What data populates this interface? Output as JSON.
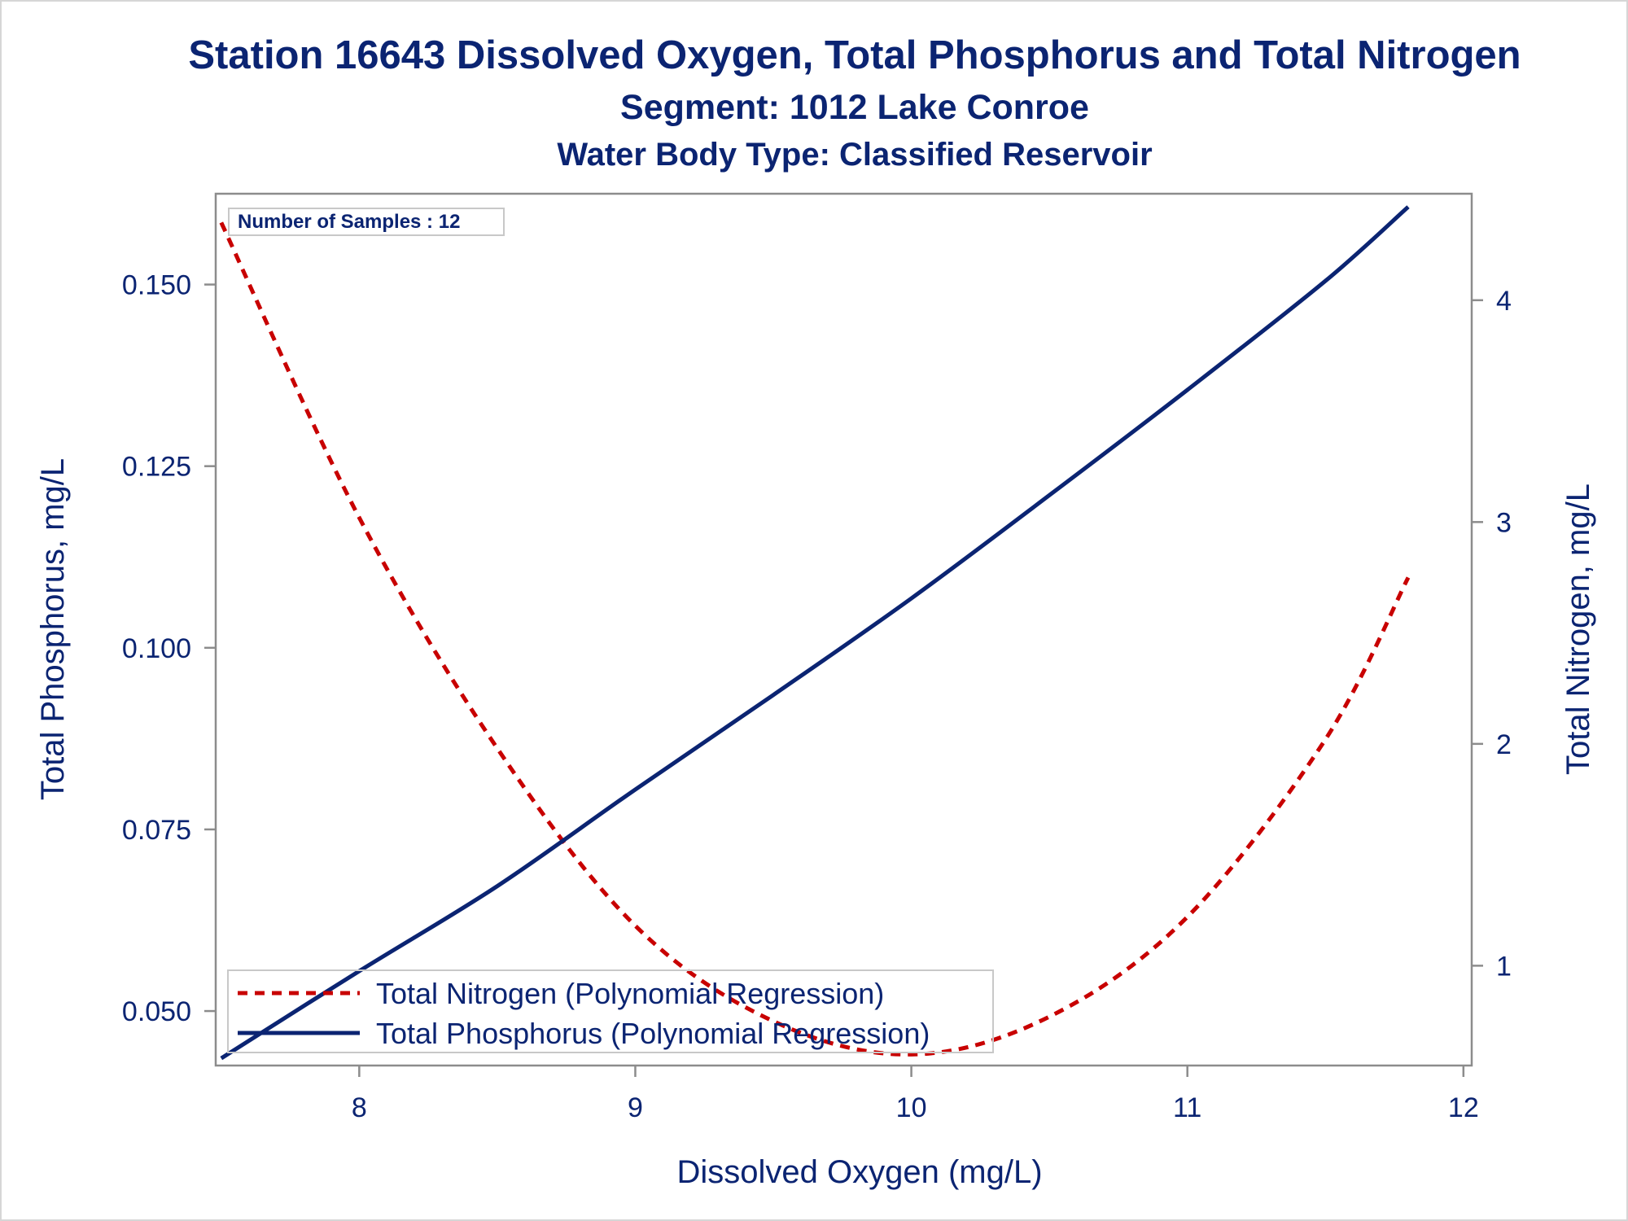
{
  "titles": {
    "line1": "Station 16643  Dissolved Oxygen, Total Phosphorus and Total Nitrogen",
    "line2": "Segment: 1012  Lake Conroe",
    "line3": "Water Body Type: Classified Reservoir"
  },
  "inset_label": "Number of Samples : 12",
  "colors": {
    "text": "#0b2472",
    "phosphorus": "#0b2472",
    "nitrogen": "#c80000",
    "axis": "#8c8c8c"
  },
  "chart_data": {
    "type": "line",
    "xlabel": "Dissolved Oxygen (mg/L)",
    "ylabel": "Total Phosphorus, mg/L",
    "y2label": "Total Nitrogen, mg/L",
    "xlim": [
      7.48,
      12.03
    ],
    "ylim": [
      0.0425,
      0.1625
    ],
    "y2lim": [
      0.55,
      4.48
    ],
    "xticks": [
      "8",
      "9",
      "10",
      "11",
      "12"
    ],
    "yticks": [
      "0.050",
      "0.075",
      "0.100",
      "0.125",
      "0.150"
    ],
    "y2ticks": [
      "1",
      "2",
      "3",
      "4"
    ],
    "legend_position": "bottom-left",
    "grid": false,
    "series": [
      {
        "name": "Total Nitrogen (Polynomial Regression)",
        "axis": "right",
        "style": "dashed",
        "x": [
          7.5,
          8.0,
          8.5,
          9.0,
          9.5,
          10.0,
          10.5,
          11.0,
          11.5,
          11.8
        ],
        "y": [
          4.35,
          3.02,
          1.98,
          1.18,
          0.75,
          0.6,
          0.77,
          1.22,
          2.02,
          2.75
        ]
      },
      {
        "name": "Total Phosphorus (Polynomial Regression)",
        "axis": "left",
        "style": "solid",
        "x": [
          7.5,
          8.0,
          8.5,
          9.0,
          9.5,
          10.0,
          10.5,
          11.0,
          11.5,
          11.8
        ],
        "y": [
          0.0435,
          0.0555,
          0.0672,
          0.0805,
          0.0935,
          0.1068,
          0.121,
          0.1355,
          0.1505,
          0.1607
        ]
      }
    ]
  }
}
